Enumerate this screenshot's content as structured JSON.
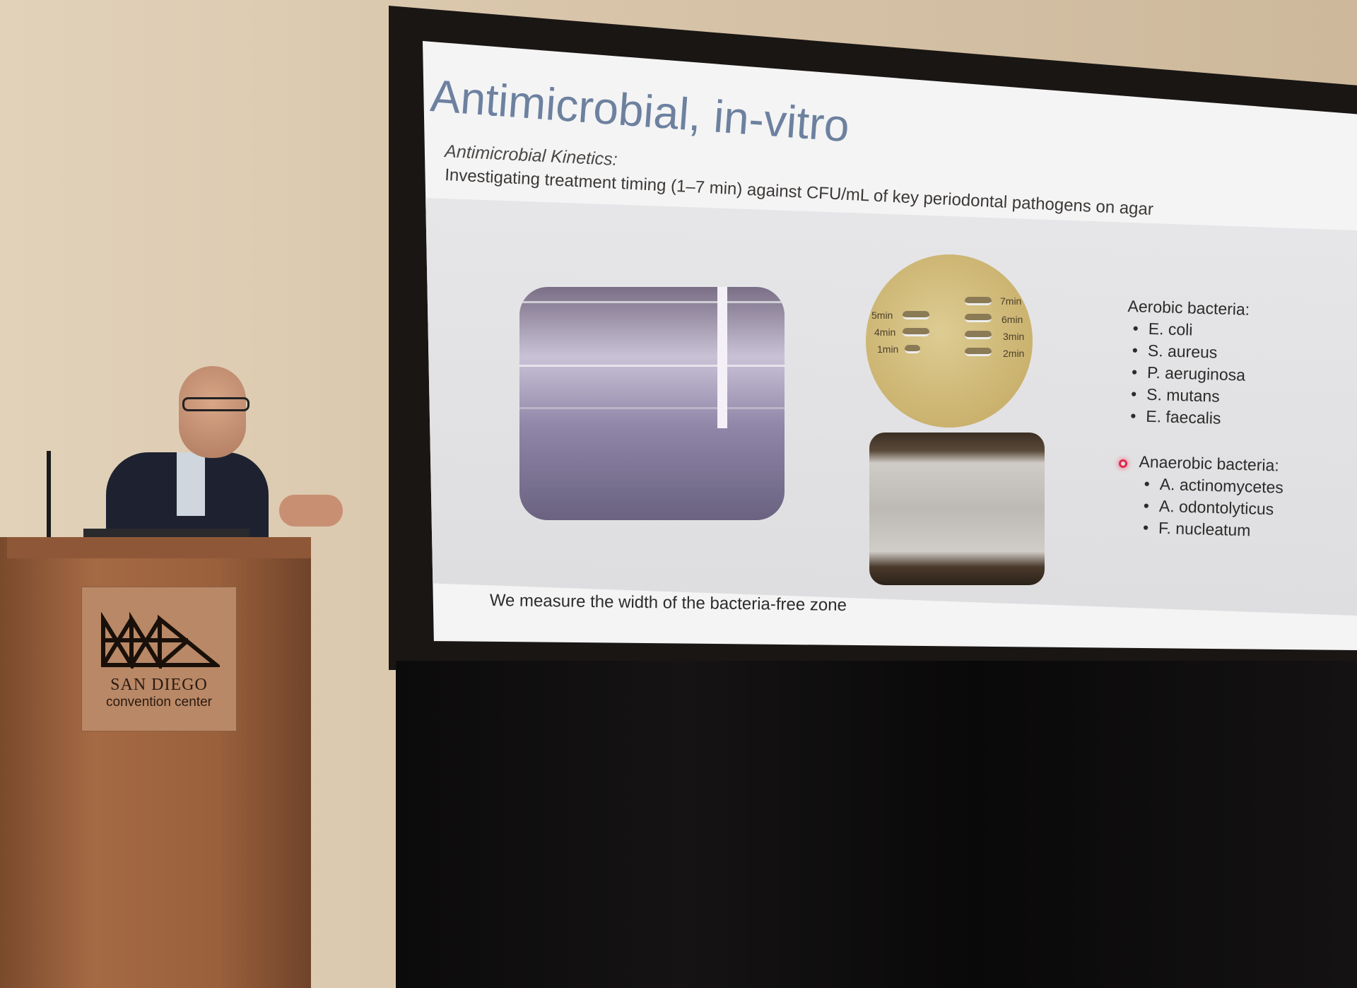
{
  "slide": {
    "title": "Antimicrobial, in-vitro",
    "subtitle": "Antimicrobial Kinetics:",
    "description": "Investigating treatment timing (1–7 min) against CFU/mL of key periodontal pathogens on agar",
    "dish_labels": [
      "5min",
      "4min",
      "1min",
      "7min",
      "6min",
      "3min",
      "2min"
    ],
    "aerobic": {
      "heading": "Aerobic bacteria:",
      "items": [
        "E. coli",
        "S. aureus",
        "P. aeruginosa",
        "S. mutans",
        "E. faecalis"
      ]
    },
    "anaerobic": {
      "heading": "Anaerobic bacteria:",
      "items": [
        "A. actinomycetes",
        "A. odontolyticus",
        "F. nucleatum"
      ]
    },
    "footer": "We measure the width of the bacteria-free zone",
    "colors": {
      "title": "#6d819f",
      "laser_pointer": "#e0284a"
    }
  },
  "podium": {
    "logo_line1": "SAN DIEGO",
    "logo_line2": "convention center"
  }
}
